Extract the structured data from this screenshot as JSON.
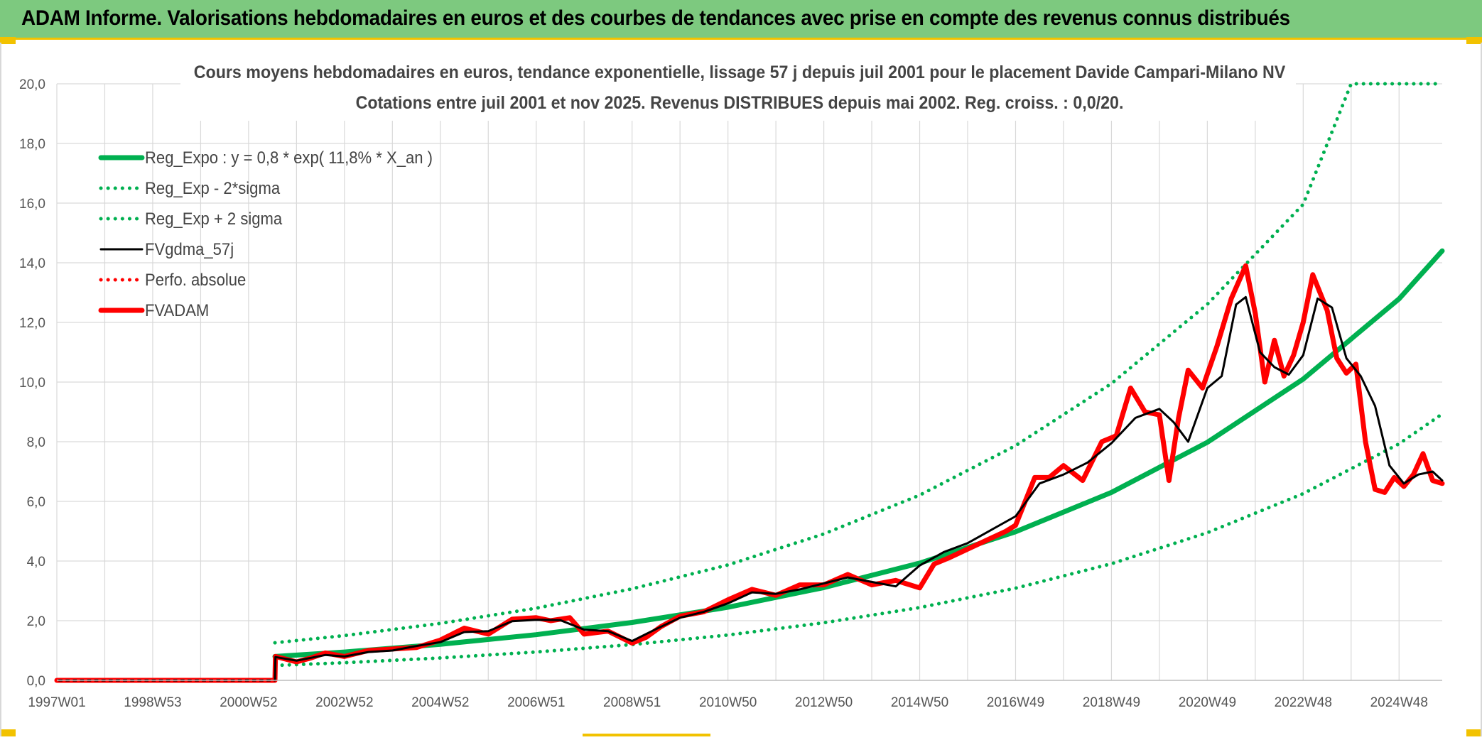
{
  "banner": {
    "title": "ADAM Informe. Valorisations hebdomadaires en euros et des courbes de tendances avec prise en compte des revenus connus distribués"
  },
  "colors": {
    "banner_bg": "#7dc97f",
    "banner_accent": "#f2c200",
    "trend_green": "#00b050",
    "price_red": "#ff0000",
    "moving_avg_black": "#000000",
    "grid": "#d9d9d9"
  },
  "chart_data": {
    "type": "line",
    "title_line1": "Cours moyens hebdomadaires en euros, tendance exponentielle, lissage 57 j depuis juil 2001 pour le placement Davide Campari-Milano NV",
    "title_line2": "Cotations entre juil 2001 et nov 2025. Revenus DISTRIBUES depuis mai 2002. Reg. croiss. : 0,0/20.",
    "xlabel": "",
    "ylabel": "",
    "x_range": [
      1997.0,
      2025.9
    ],
    "ylim": [
      0,
      20
    ],
    "y_ticks": [
      "0,0",
      "2,0",
      "4,0",
      "6,0",
      "8,0",
      "10,0",
      "12,0",
      "14,0",
      "16,0",
      "18,0",
      "20,0"
    ],
    "x_ticks": [
      {
        "label": "1997W01",
        "x": 1997.0
      },
      {
        "label": "1998W53",
        "x": 1999.0
      },
      {
        "label": "2000W52",
        "x": 2001.0
      },
      {
        "label": "2002W52",
        "x": 2003.0
      },
      {
        "label": "2004W52",
        "x": 2005.0
      },
      {
        "label": "2006W51",
        "x": 2007.0
      },
      {
        "label": "2008W51",
        "x": 2009.0
      },
      {
        "label": "2010W50",
        "x": 2011.0
      },
      {
        "label": "2012W50",
        "x": 2013.0
      },
      {
        "label": "2014W50",
        "x": 2015.0
      },
      {
        "label": "2016W49",
        "x": 2017.0
      },
      {
        "label": "2018W49",
        "x": 2019.0
      },
      {
        "label": "2020W49",
        "x": 2021.0
      },
      {
        "label": "2022W48",
        "x": 2023.0
      },
      {
        "label": "2024W48",
        "x": 2025.0
      }
    ],
    "grid": true,
    "legend_position": "top-left",
    "regression": {
      "a": 0.8,
      "rate": 0.118,
      "x0": 2001.55,
      "lower_factor": 0.62,
      "upper_factor": 1.58,
      "cap": 20
    },
    "series": [
      {
        "name": "Reg_Expo : y = 0,8 * exp( 11,8% *  X_an )",
        "style": "solid-thick",
        "color": "#00b050",
        "x": [
          2001.55,
          2003,
          2005,
          2007,
          2009,
          2011,
          2013,
          2015,
          2017,
          2019,
          2021,
          2023,
          2025,
          2025.9
        ],
        "values": [
          0.8,
          0.95,
          1.21,
          1.53,
          1.94,
          2.45,
          3.11,
          3.93,
          4.98,
          6.3,
          7.98,
          10.1,
          12.79,
          14.4
        ]
      },
      {
        "name": "Reg_Exp - 2*sigma",
        "style": "dotted",
        "color": "#00b050",
        "x": [
          2001.55,
          2003,
          2005,
          2007,
          2009,
          2011,
          2013,
          2015,
          2017,
          2019,
          2021,
          2023,
          2025,
          2025.9
        ],
        "values": [
          0.5,
          0.59,
          0.75,
          0.95,
          1.2,
          1.52,
          1.93,
          2.44,
          3.09,
          3.91,
          4.95,
          6.26,
          7.93,
          8.93
        ]
      },
      {
        "name": "Reg_Exp + 2 sigma",
        "style": "dotted",
        "color": "#00b050",
        "x": [
          2001.55,
          2003,
          2005,
          2007,
          2009,
          2011,
          2013,
          2015,
          2017,
          2019,
          2021,
          2023,
          2024.0,
          2025.9
        ],
        "values": [
          1.26,
          1.5,
          1.91,
          2.42,
          3.07,
          3.87,
          4.91,
          6.21,
          7.87,
          9.95,
          12.61,
          15.96,
          20.0,
          20.0
        ]
      },
      {
        "name": "FVgdma_57j",
        "style": "solid",
        "color": "#000000",
        "x": [
          1997.0,
          2001.55,
          2001.56,
          2002.0,
          2002.6,
          2003.0,
          2003.5,
          2004.0,
          2004.5,
          2005.0,
          2005.5,
          2006.0,
          2006.5,
          2007.0,
          2007.5,
          2008.0,
          2008.5,
          2009.0,
          2009.5,
          2010.0,
          2010.5,
          2011.0,
          2011.5,
          2012.0,
          2012.5,
          2013.0,
          2013.5,
          2014.0,
          2014.5,
          2015.0,
          2015.5,
          2016.0,
          2016.5,
          2017.0,
          2017.5,
          2018.0,
          2018.5,
          2019.0,
          2019.5,
          2020.0,
          2020.3,
          2020.6,
          2021.0,
          2021.3,
          2021.6,
          2021.8,
          2022.1,
          2022.4,
          2022.7,
          2023.0,
          2023.3,
          2023.6,
          2023.9,
          2024.2,
          2024.5,
          2024.8,
          2025.1,
          2025.4,
          2025.7,
          2025.9
        ],
        "values": [
          0,
          0,
          0.78,
          0.66,
          0.85,
          0.8,
          0.95,
          1.0,
          1.15,
          1.28,
          1.62,
          1.65,
          1.98,
          2.03,
          2.02,
          1.7,
          1.65,
          1.32,
          1.72,
          2.1,
          2.3,
          2.58,
          2.95,
          2.9,
          3.05,
          3.25,
          3.45,
          3.3,
          3.15,
          3.85,
          4.3,
          4.6,
          5.05,
          5.5,
          6.6,
          6.9,
          7.3,
          7.95,
          8.8,
          9.1,
          8.65,
          8.0,
          9.8,
          10.2,
          12.6,
          12.85,
          11.0,
          10.5,
          10.25,
          10.9,
          12.8,
          12.5,
          10.8,
          10.2,
          9.2,
          7.2,
          6.6,
          6.9,
          7.0,
          6.7
        ]
      },
      {
        "name": "Perfo. absolue",
        "style": "dotted",
        "color": "#ff0000",
        "x": [
          1997.0,
          2001.55
        ],
        "values": [
          0,
          0
        ]
      },
      {
        "name": "FVADAM",
        "style": "solid-thick",
        "color": "#ff0000",
        "x": [
          1997.0,
          2001.55,
          2001.56,
          2002.0,
          2002.3,
          2002.6,
          2003.0,
          2003.5,
          2004.0,
          2004.5,
          2005.0,
          2005.5,
          2006.0,
          2006.5,
          2007.0,
          2007.3,
          2007.7,
          2008.0,
          2008.5,
          2009.0,
          2009.3,
          2009.6,
          2010.0,
          2010.5,
          2011.0,
          2011.5,
          2012.0,
          2012.5,
          2013.0,
          2013.5,
          2014.0,
          2014.5,
          2015.0,
          2015.3,
          2015.6,
          2016.0,
          2016.4,
          2016.8,
          2017.0,
          2017.4,
          2017.7,
          2018.0,
          2018.4,
          2018.8,
          2019.1,
          2019.4,
          2019.7,
          2020.0,
          2020.2,
          2020.4,
          2020.6,
          2020.9,
          2021.2,
          2021.5,
          2021.8,
          2022.0,
          2022.2,
          2022.4,
          2022.6,
          2022.8,
          2023.0,
          2023.2,
          2023.5,
          2023.7,
          2023.9,
          2024.1,
          2024.3,
          2024.5,
          2024.7,
          2024.9,
          2025.1,
          2025.3,
          2025.5,
          2025.7,
          2025.9
        ],
        "values": [
          0,
          0,
          0.8,
          0.62,
          0.75,
          0.92,
          0.8,
          1.0,
          1.05,
          1.1,
          1.35,
          1.75,
          1.55,
          2.05,
          2.1,
          2.0,
          2.1,
          1.55,
          1.65,
          1.25,
          1.45,
          1.8,
          2.15,
          2.3,
          2.7,
          3.05,
          2.85,
          3.2,
          3.2,
          3.55,
          3.2,
          3.35,
          3.1,
          3.9,
          4.1,
          4.4,
          4.7,
          5.0,
          5.2,
          6.8,
          6.8,
          7.2,
          6.7,
          8.0,
          8.2,
          9.8,
          9.0,
          8.9,
          6.7,
          8.8,
          10.4,
          9.8,
          11.2,
          12.8,
          13.9,
          12.3,
          10.0,
          11.4,
          10.2,
          10.9,
          12.0,
          13.6,
          12.4,
          10.8,
          10.3,
          10.6,
          8.0,
          6.4,
          6.3,
          6.8,
          6.5,
          6.9,
          7.6,
          6.7,
          6.6
        ]
      }
    ]
  }
}
